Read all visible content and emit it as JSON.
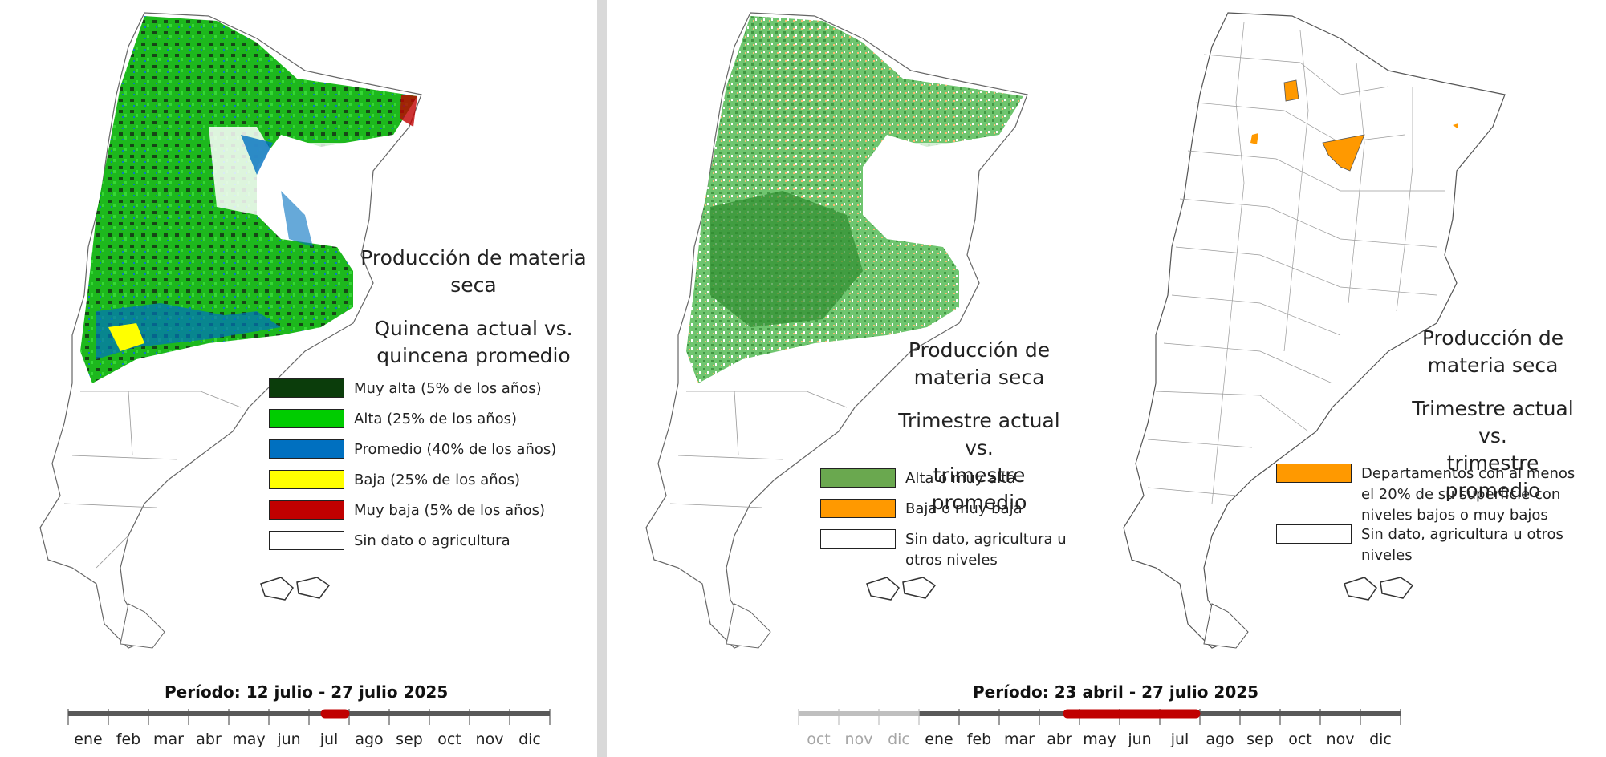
{
  "panels": [
    {
      "title_lines": [
        "Producción de materia",
        "seca"
      ],
      "subtitle_lines": [
        "Quincena actual vs.",
        "quincena  promedio"
      ],
      "legend": [
        {
          "color": "#0b3d0b",
          "label": "Muy alta (5% de los años)"
        },
        {
          "color": "#00cc00",
          "label": "Alta (25% de los años)"
        },
        {
          "color": "#0070c0",
          "label": "Promedio (40% de los años)"
        },
        {
          "color": "#ffff00",
          "label": "Baja (25% de los años)"
        },
        {
          "color": "#c00000",
          "label": "Muy baja (5% de los años)"
        },
        {
          "color": "#ffffff",
          "label": "Sin dato o agricultura"
        }
      ],
      "period": "Período:  12 julio  - 27 julio 2025",
      "months": [
        "ene",
        "feb",
        "mar",
        "abr",
        "may",
        "jun",
        "jul",
        "ago",
        "sep",
        "oct",
        "nov",
        "dic"
      ],
      "highlight": {
        "from_month": 6.4,
        "to_month": 6.9
      }
    },
    {
      "title_lines": [
        "Producción de",
        "materia seca"
      ],
      "subtitle_lines": [
        "Trimestre actual vs.",
        "trimestre promedio"
      ],
      "legend": [
        {
          "color": "#6aa84f",
          "label": "Alta o muy alta"
        },
        {
          "color": "#ff9900",
          "label": "Baja o muy baja"
        },
        {
          "color": "#ffffff",
          "label": "Sin dato, agricultura u otros niveles"
        }
      ]
    },
    {
      "title_lines": [
        "Producción de",
        "materia seca"
      ],
      "subtitle_lines": [
        "Trimestre actual vs.",
        "trimestre promedio"
      ],
      "legend": [
        {
          "color": "#ff9900",
          "label": "Departamentos con al menos el 20% de su superficie con niveles bajos o muy bajos"
        },
        {
          "color": "#ffffff",
          "label": "Sin dato, agricultura u otros niveles"
        }
      ]
    }
  ],
  "timeline2": {
    "period": "Período:  23 abril - 27 julio 2025",
    "prev_months": [
      "oct",
      "nov",
      "dic"
    ],
    "months": [
      "ene",
      "feb",
      "mar",
      "abr",
      "may",
      "jun",
      "jul",
      "ago",
      "sep",
      "oct",
      "nov",
      "dic"
    ],
    "highlight": {
      "from_month": 3.7,
      "to_month": 6.9
    }
  },
  "colors": {
    "timeline": "#595959",
    "timeline_prev": "#bfbfbf",
    "highlight": "#c00000",
    "border": "#777777",
    "month_prev": "#a6a6a6"
  }
}
